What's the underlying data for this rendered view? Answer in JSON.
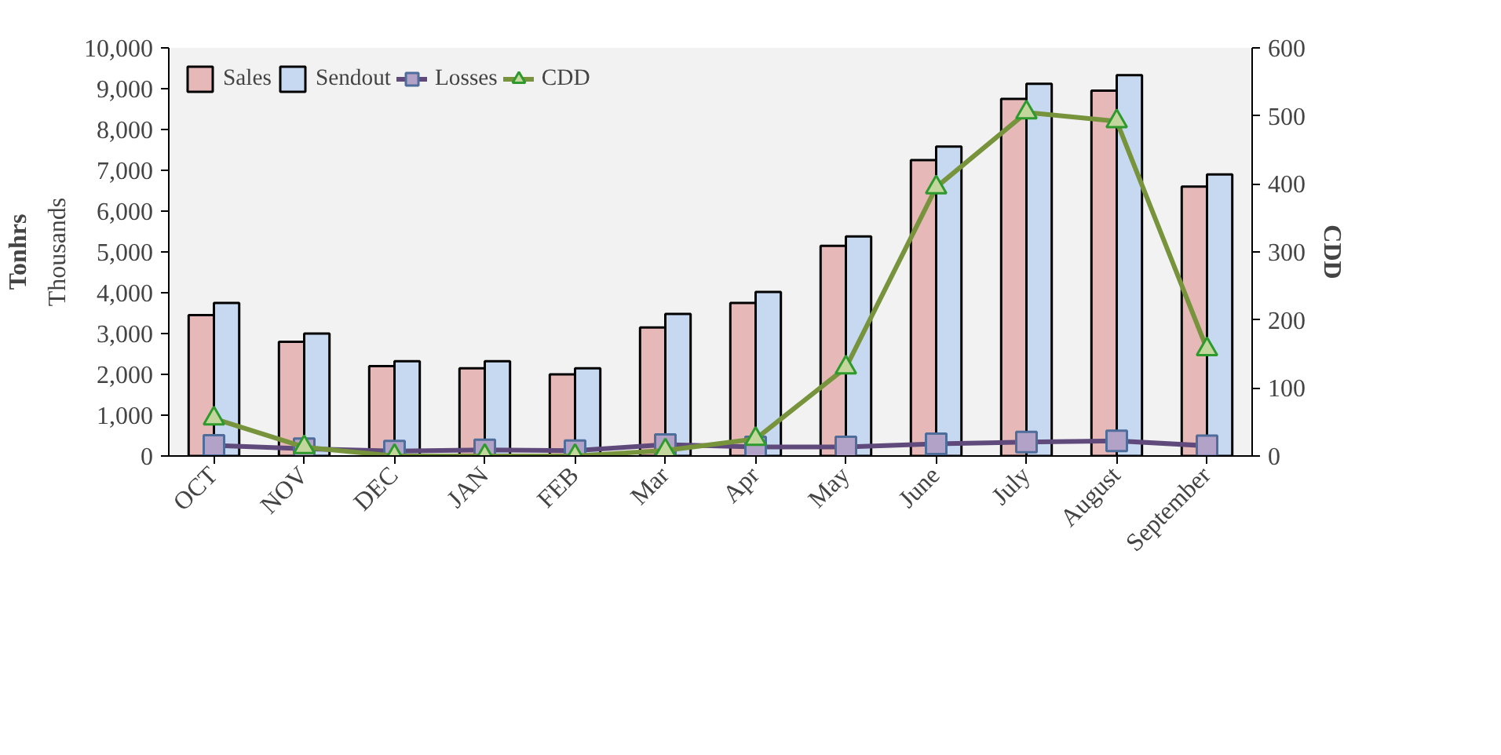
{
  "chart_data": {
    "type": "bar",
    "ylabel": "Tonhrs",
    "y2label": "CDD",
    "annotations": [
      "Thousands"
    ],
    "categories": [
      "OCT",
      "NOV",
      "DEC",
      "JAN",
      "FEB",
      "Mar",
      "Apr",
      "May",
      "June",
      "July",
      "August",
      "September"
    ],
    "series": [
      {
        "name": "Sales",
        "color": "#e6b9b8",
        "values": [
          3450,
          2800,
          2200,
          2150,
          2000,
          3150,
          3750,
          5150,
          7250,
          8750,
          8950,
          6600
        ]
      },
      {
        "name": "Sendout",
        "color": "#c6d9f1",
        "values": [
          3750,
          3000,
          2320,
          2320,
          2150,
          3480,
          4020,
          5380,
          7580,
          9120,
          9330,
          6900
        ]
      },
      {
        "name": "Losses",
        "type": "line",
        "marker": "square",
        "color": "#604a7b",
        "values": [
          260,
          180,
          120,
          150,
          130,
          280,
          220,
          220,
          300,
          340,
          370,
          250
        ]
      },
      {
        "name": "CDD",
        "type": "line",
        "marker": "triangle",
        "axis": "y2",
        "color": "#77933c",
        "values": [
          55,
          13,
          0,
          0,
          0,
          8,
          25,
          130,
          395,
          505,
          492,
          157
        ]
      }
    ],
    "ylim": [
      0,
      10000
    ],
    "yticks": [
      {
        "value": 0,
        "label": "0"
      },
      {
        "value": 1000,
        "label": "1,000"
      },
      {
        "value": 2000,
        "label": "2,000"
      },
      {
        "value": 3000,
        "label": "3,000"
      },
      {
        "value": 4000,
        "label": "4,000"
      },
      {
        "value": 5000,
        "label": "5,000"
      },
      {
        "value": 6000,
        "label": "6,000"
      },
      {
        "value": 7000,
        "label": "7,000"
      },
      {
        "value": 8000,
        "label": "8,000"
      },
      {
        "value": 9000,
        "label": "9,000"
      },
      {
        "value": 10000,
        "label": "10,000"
      }
    ],
    "y2lim": [
      0,
      600
    ],
    "y2ticks": [
      0,
      100,
      200,
      300,
      400,
      500,
      600
    ],
    "grid": false,
    "legend": "top left"
  }
}
